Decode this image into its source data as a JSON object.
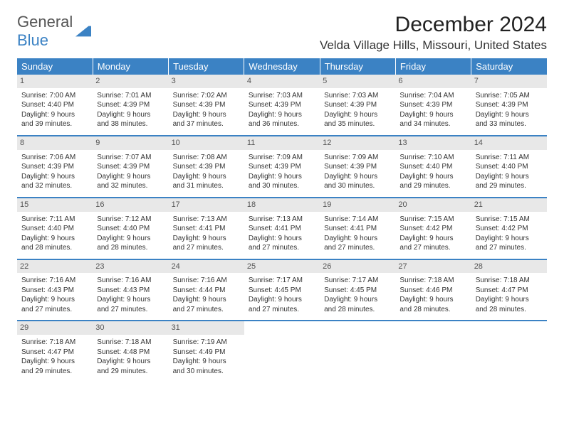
{
  "logo": {
    "text1": "General",
    "text2": "Blue"
  },
  "header": {
    "title": "December 2024",
    "location": "Velda Village Hills, Missouri, United States"
  },
  "colors": {
    "header_bg": "#3b82c4",
    "header_fg": "#ffffff",
    "daynum_bg": "#e8e8e8",
    "border": "#3b82c4"
  },
  "weekdays": [
    "Sunday",
    "Monday",
    "Tuesday",
    "Wednesday",
    "Thursday",
    "Friday",
    "Saturday"
  ],
  "weeks": [
    [
      {
        "n": "1",
        "sr": "7:00 AM",
        "ss": "4:40 PM",
        "dl": "9 hours and 39 minutes."
      },
      {
        "n": "2",
        "sr": "7:01 AM",
        "ss": "4:39 PM",
        "dl": "9 hours and 38 minutes."
      },
      {
        "n": "3",
        "sr": "7:02 AM",
        "ss": "4:39 PM",
        "dl": "9 hours and 37 minutes."
      },
      {
        "n": "4",
        "sr": "7:03 AM",
        "ss": "4:39 PM",
        "dl": "9 hours and 36 minutes."
      },
      {
        "n": "5",
        "sr": "7:03 AM",
        "ss": "4:39 PM",
        "dl": "9 hours and 35 minutes."
      },
      {
        "n": "6",
        "sr": "7:04 AM",
        "ss": "4:39 PM",
        "dl": "9 hours and 34 minutes."
      },
      {
        "n": "7",
        "sr": "7:05 AM",
        "ss": "4:39 PM",
        "dl": "9 hours and 33 minutes."
      }
    ],
    [
      {
        "n": "8",
        "sr": "7:06 AM",
        "ss": "4:39 PM",
        "dl": "9 hours and 32 minutes."
      },
      {
        "n": "9",
        "sr": "7:07 AM",
        "ss": "4:39 PM",
        "dl": "9 hours and 32 minutes."
      },
      {
        "n": "10",
        "sr": "7:08 AM",
        "ss": "4:39 PM",
        "dl": "9 hours and 31 minutes."
      },
      {
        "n": "11",
        "sr": "7:09 AM",
        "ss": "4:39 PM",
        "dl": "9 hours and 30 minutes."
      },
      {
        "n": "12",
        "sr": "7:09 AM",
        "ss": "4:39 PM",
        "dl": "9 hours and 30 minutes."
      },
      {
        "n": "13",
        "sr": "7:10 AM",
        "ss": "4:40 PM",
        "dl": "9 hours and 29 minutes."
      },
      {
        "n": "14",
        "sr": "7:11 AM",
        "ss": "4:40 PM",
        "dl": "9 hours and 29 minutes."
      }
    ],
    [
      {
        "n": "15",
        "sr": "7:11 AM",
        "ss": "4:40 PM",
        "dl": "9 hours and 28 minutes."
      },
      {
        "n": "16",
        "sr": "7:12 AM",
        "ss": "4:40 PM",
        "dl": "9 hours and 28 minutes."
      },
      {
        "n": "17",
        "sr": "7:13 AM",
        "ss": "4:41 PM",
        "dl": "9 hours and 27 minutes."
      },
      {
        "n": "18",
        "sr": "7:13 AM",
        "ss": "4:41 PM",
        "dl": "9 hours and 27 minutes."
      },
      {
        "n": "19",
        "sr": "7:14 AM",
        "ss": "4:41 PM",
        "dl": "9 hours and 27 minutes."
      },
      {
        "n": "20",
        "sr": "7:15 AM",
        "ss": "4:42 PM",
        "dl": "9 hours and 27 minutes."
      },
      {
        "n": "21",
        "sr": "7:15 AM",
        "ss": "4:42 PM",
        "dl": "9 hours and 27 minutes."
      }
    ],
    [
      {
        "n": "22",
        "sr": "7:16 AM",
        "ss": "4:43 PM",
        "dl": "9 hours and 27 minutes."
      },
      {
        "n": "23",
        "sr": "7:16 AM",
        "ss": "4:43 PM",
        "dl": "9 hours and 27 minutes."
      },
      {
        "n": "24",
        "sr": "7:16 AM",
        "ss": "4:44 PM",
        "dl": "9 hours and 27 minutes."
      },
      {
        "n": "25",
        "sr": "7:17 AM",
        "ss": "4:45 PM",
        "dl": "9 hours and 27 minutes."
      },
      {
        "n": "26",
        "sr": "7:17 AM",
        "ss": "4:45 PM",
        "dl": "9 hours and 28 minutes."
      },
      {
        "n": "27",
        "sr": "7:18 AM",
        "ss": "4:46 PM",
        "dl": "9 hours and 28 minutes."
      },
      {
        "n": "28",
        "sr": "7:18 AM",
        "ss": "4:47 PM",
        "dl": "9 hours and 28 minutes."
      }
    ],
    [
      {
        "n": "29",
        "sr": "7:18 AM",
        "ss": "4:47 PM",
        "dl": "9 hours and 29 minutes."
      },
      {
        "n": "30",
        "sr": "7:18 AM",
        "ss": "4:48 PM",
        "dl": "9 hours and 29 minutes."
      },
      {
        "n": "31",
        "sr": "7:19 AM",
        "ss": "4:49 PM",
        "dl": "9 hours and 30 minutes."
      },
      null,
      null,
      null,
      null
    ]
  ],
  "labels": {
    "sunrise": "Sunrise: ",
    "sunset": "Sunset: ",
    "daylight": "Daylight: "
  }
}
